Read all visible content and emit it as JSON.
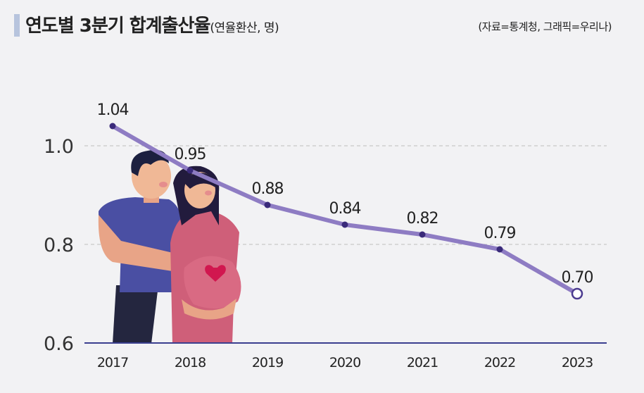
{
  "header": {
    "title": "연도별 3분기 합계출산율",
    "subtitle": "(연율환산, 명)",
    "source": "(자료=통계청, 그래픽=우리나)"
  },
  "chart_data": {
    "type": "line",
    "title": "연도별 3분기 합계출산율",
    "unit": "(연율환산, 명)",
    "x": [
      "2017",
      "2018",
      "2019",
      "2020",
      "2021",
      "2022",
      "2023"
    ],
    "series": [
      {
        "values": [
          1.04,
          0.95,
          0.88,
          0.84,
          0.82,
          0.79,
          0.7
        ]
      }
    ],
    "data_labels": [
      "1.04",
      "0.95",
      "0.88",
      "0.84",
      "0.82",
      "0.79",
      "0.70"
    ],
    "y_ticks": [
      "0.6",
      "0.8",
      "1.0"
    ],
    "ylim": [
      0.6,
      1.1
    ],
    "grid": "horizontal dashed",
    "colors": {
      "line": "#8e7cc3",
      "point": "#3a2a7a",
      "axis": "#3b3f8f",
      "grid": "#c8c8c8"
    }
  }
}
